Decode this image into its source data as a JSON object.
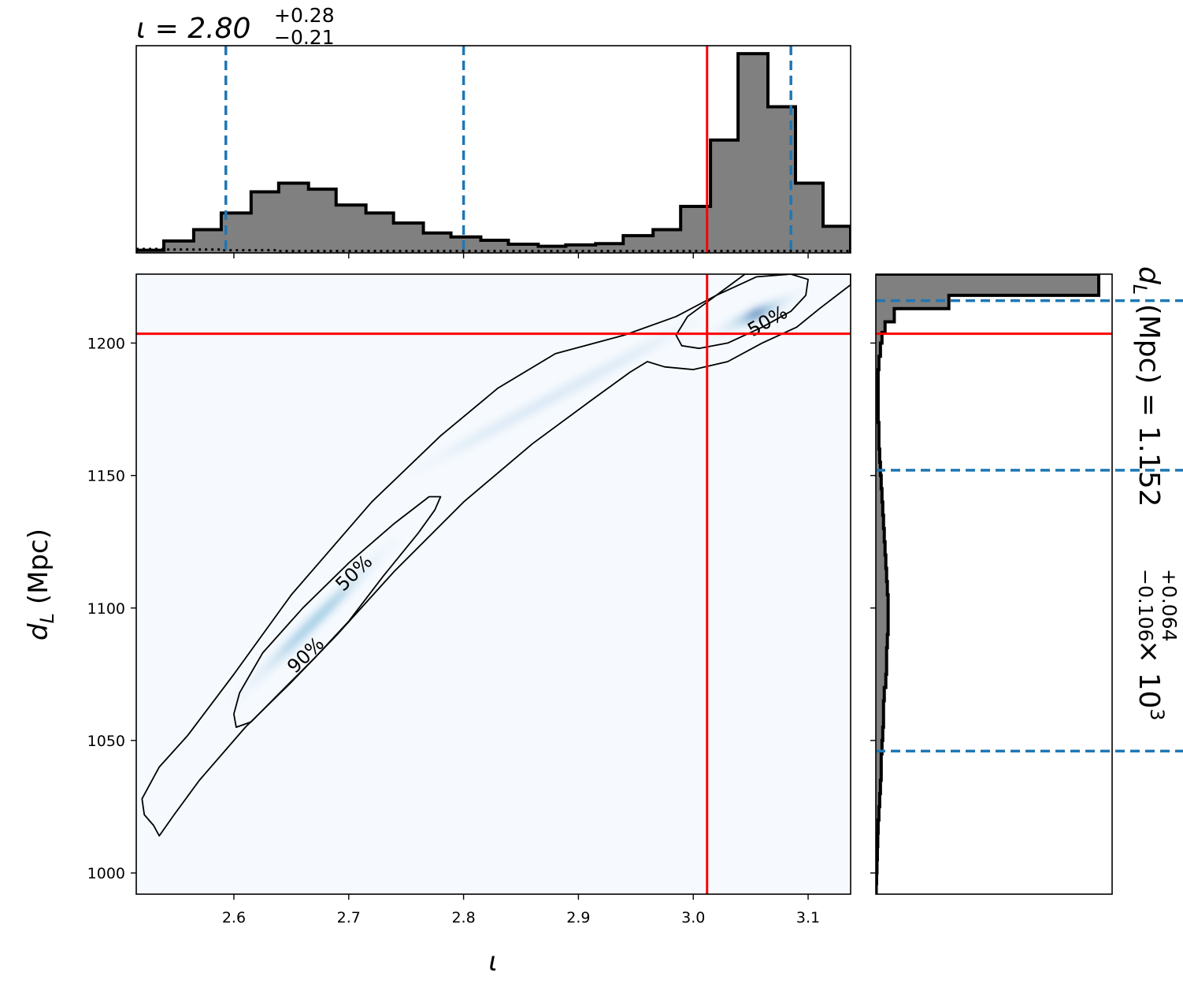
{
  "chart_data": {
    "type": "corner",
    "colors": {
      "histogram_fill": "#808080",
      "histogram_edge": "#000000",
      "quantile_lines": "#1f77b4",
      "truth_lines": "#ff0000",
      "density_colormap": "Blues",
      "contour_lines": "#000000"
    },
    "truth": {
      "iota": 3.012,
      "dL": 1203.5
    },
    "top_panel": {
      "title_main": "ι = 2.80",
      "title_plus": "+0.28",
      "title_minus": "−0.21",
      "xlim": [
        2.515,
        3.137
      ],
      "quantiles": [
        2.593,
        2.8,
        3.085
      ],
      "bins_x": [
        2.515,
        2.539,
        2.565,
        2.589,
        2.615,
        2.639,
        2.665,
        2.689,
        2.715,
        2.739,
        2.765,
        2.789,
        2.815,
        2.839,
        2.865,
        2.889,
        2.915,
        2.939,
        2.965,
        2.989,
        3.015,
        3.039,
        3.065,
        3.089,
        3.113,
        3.137
      ],
      "hist_counts": [
        4,
        18,
        35,
        60,
        92,
        105,
        96,
        72,
        60,
        45,
        30,
        24,
        19,
        13,
        10,
        12,
        14,
        26,
        35,
        70,
        170,
        300,
        220,
        105,
        40
      ],
      "dotted_line_counts": [
        6,
        5,
        5,
        4,
        4,
        3,
        3,
        3,
        3,
        3,
        3,
        3,
        3,
        3,
        3,
        3,
        3,
        3,
        3,
        3,
        3,
        3,
        3,
        3,
        3
      ]
    },
    "main_panel": {
      "xlabel": "ι",
      "ylabel": "d",
      "ylabel_sub": "L",
      "ylabel_unit": " (Mpc)",
      "xlim": [
        2.515,
        3.137
      ],
      "ylim": [
        992,
        1226
      ],
      "xticks": [
        2.6,
        2.7,
        2.8,
        2.9,
        3.0,
        3.1
      ],
      "xtick_labels": [
        "2.6",
        "2.7",
        "2.8",
        "2.9",
        "3.0",
        "3.1"
      ],
      "yticks": [
        1000,
        1050,
        1100,
        1150,
        1200
      ],
      "ytick_labels": [
        "1000",
        "1050",
        "1100",
        "1150",
        "1200"
      ],
      "contour_labels": [
        {
          "text": "50%",
          "x": 2.705,
          "y": 1113,
          "angle": -44
        },
        {
          "text": "90%",
          "x": 2.663,
          "y": 1082,
          "angle": -44
        },
        {
          "text": "50%",
          "x": 3.065,
          "y": 1208,
          "angle": -30
        }
      ],
      "contour_90": [
        [
          2.535,
          1014
        ],
        [
          2.53,
          1018
        ],
        [
          2.522,
          1022
        ],
        [
          2.52,
          1028
        ],
        [
          2.535,
          1040
        ],
        [
          2.56,
          1052
        ],
        [
          2.6,
          1075
        ],
        [
          2.65,
          1105
        ],
        [
          2.72,
          1140
        ],
        [
          2.78,
          1165
        ],
        [
          2.83,
          1183
        ],
        [
          2.88,
          1196
        ],
        [
          2.94,
          1203
        ],
        [
          2.985,
          1210
        ],
        [
          3.02,
          1218
        ],
        [
          3.045,
          1226
        ],
        [
          3.137,
          1226
        ],
        [
          3.137,
          1222
        ],
        [
          3.11,
          1213
        ],
        [
          3.09,
          1206
        ],
        [
          3.06,
          1200
        ],
        [
          3.03,
          1193
        ],
        [
          3.0,
          1190
        ],
        [
          2.975,
          1191
        ],
        [
          2.96,
          1193
        ],
        [
          2.945,
          1189
        ],
        [
          2.91,
          1178
        ],
        [
          2.86,
          1162
        ],
        [
          2.8,
          1140
        ],
        [
          2.74,
          1114
        ],
        [
          2.69,
          1090
        ],
        [
          2.65,
          1072
        ],
        [
          2.61,
          1055
        ],
        [
          2.57,
          1035
        ],
        [
          2.548,
          1022
        ],
        [
          2.535,
          1014
        ]
      ],
      "contour_50a": [
        [
          2.602,
          1055
        ],
        [
          2.6,
          1060
        ],
        [
          2.605,
          1068
        ],
        [
          2.625,
          1083
        ],
        [
          2.66,
          1100
        ],
        [
          2.7,
          1117
        ],
        [
          2.74,
          1132
        ],
        [
          2.77,
          1142
        ],
        [
          2.78,
          1142
        ],
        [
          2.775,
          1137
        ],
        [
          2.76,
          1128
        ],
        [
          2.73,
          1112
        ],
        [
          2.7,
          1095
        ],
        [
          2.67,
          1081
        ],
        [
          2.64,
          1068
        ],
        [
          2.615,
          1057
        ],
        [
          2.602,
          1055
        ]
      ],
      "contour_50b": [
        [
          2.99,
          1199
        ],
        [
          2.985,
          1203
        ],
        [
          2.995,
          1210
        ],
        [
          3.02,
          1218
        ],
        [
          3.055,
          1225
        ],
        [
          3.085,
          1226
        ],
        [
          3.1,
          1224
        ],
        [
          3.098,
          1218
        ],
        [
          3.085,
          1212
        ],
        [
          3.06,
          1206
        ],
        [
          3.03,
          1200
        ],
        [
          3.005,
          1198
        ],
        [
          2.99,
          1199
        ]
      ],
      "density_blobs": [
        {
          "x": 2.67,
          "y": 1095,
          "sx": 0.065,
          "sy": 0.016,
          "angle": -45,
          "strength": 0.55
        },
        {
          "x": 3.055,
          "y": 1211,
          "sx": 0.03,
          "sy": 0.012,
          "angle": -25,
          "strength": 0.95
        },
        {
          "x": 2.88,
          "y": 1180,
          "sx": 0.09,
          "sy": 0.006,
          "angle": -28,
          "strength": 0.12
        }
      ]
    },
    "right_panel": {
      "title_main": "d",
      "title_sub": "L",
      "title_unit": " (Mpc) = 1.152",
      "title_plus": "+0.064",
      "title_minus": "−0.106",
      "title_scale": "× 10",
      "title_exp": "3",
      "ylim": [
        992,
        1226
      ],
      "quantiles": [
        1046,
        1152,
        1216
      ],
      "bins_y": [
        992,
        996,
        1000,
        1005,
        1010,
        1015,
        1020,
        1025,
        1030,
        1035,
        1040,
        1045,
        1050,
        1055,
        1060,
        1065,
        1070,
        1075,
        1080,
        1085,
        1090,
        1095,
        1100,
        1105,
        1110,
        1115,
        1120,
        1125,
        1130,
        1135,
        1140,
        1145,
        1150,
        1155,
        1160,
        1165,
        1170,
        1175,
        1180,
        1185,
        1190,
        1195,
        1200,
        1204,
        1208,
        1213,
        1218,
        1226
      ],
      "hist_counts": [
        0.5,
        1,
        1.5,
        2,
        2.5,
        3,
        4,
        5,
        6,
        7,
        7,
        8,
        9,
        10,
        10,
        11,
        13,
        14,
        14,
        15,
        16,
        16,
        16,
        15,
        14,
        13,
        12,
        11,
        10,
        9,
        8,
        7,
        6,
        5,
        4,
        4,
        3,
        3,
        3,
        3,
        4,
        6,
        8,
        12,
        24,
        95,
        290
      ]
    }
  }
}
